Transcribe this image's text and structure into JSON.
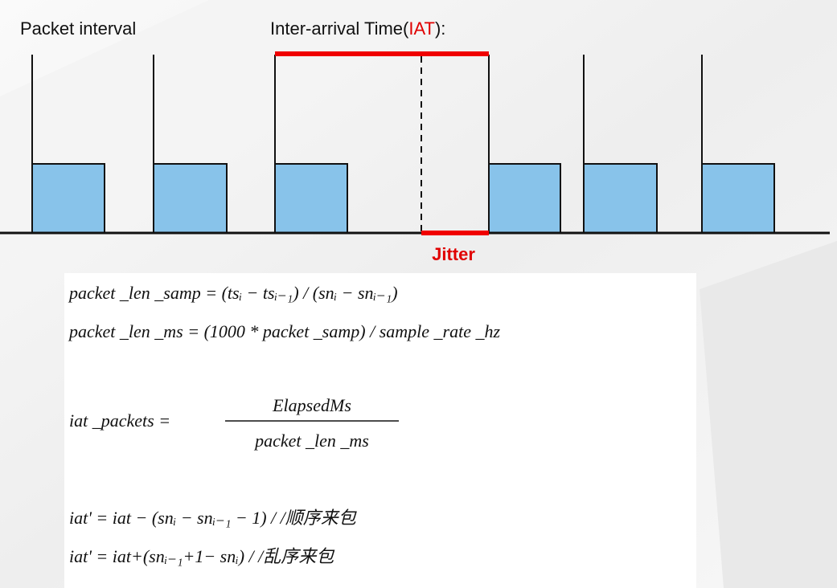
{
  "header": {
    "left_label": "Packet interval",
    "iat_label": {
      "prefix": "Inter-arrival Time(",
      "highlight": "IAT",
      "suffix": "):"
    }
  },
  "jitter_label": "Jitter",
  "formulas": {
    "line1": "packet _len _samp = (tsᵢ − tsᵢ₋₁) / (snᵢ − snᵢ₋₁)",
    "line2": "packet _len _ms = (1000 * packet _samp) / sample _rate _hz",
    "fraction": {
      "left": "iat _packets =",
      "numerator": "ElapsedMs",
      "denominator": "packet _len _ms"
    },
    "line4": "iat' = iat − (snᵢ − snᵢ₋₁ − 1) / /顺序来包",
    "line5": "iat' = iat+(snᵢ₋₁+1− snᵢ) / /乱序来包"
  }
}
